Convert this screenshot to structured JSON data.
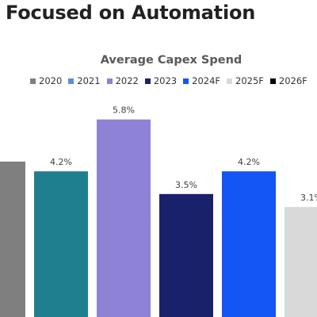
{
  "page": {
    "title": "Focused on Automation"
  },
  "chart_data": {
    "type": "bar",
    "title": "Average Capex Spend",
    "xlabel": "",
    "ylabel": "",
    "ylim": [
      0,
      6.6
    ],
    "grid": false,
    "legend_position": "top",
    "categories": [
      "2020",
      "2021",
      "2022",
      "2023",
      "2024F",
      "2025F",
      "2026F"
    ],
    "series": [
      {
        "values": [
          null,
          4.2,
          5.8,
          3.5,
          4.2,
          3.1,
          null
        ]
      }
    ],
    "value_labels": [
      "",
      "4.2%",
      "5.8%",
      "3.5%",
      "4.2%",
      "3.1%",
      ""
    ],
    "bar_colors": [
      "#7f7f7f",
      "#1f7f8f",
      "#8e82d6",
      "#19216b",
      "#1455f5",
      "#d9d9d9",
      "#000000"
    ],
    "legend": [
      {
        "label": "2020",
        "color": "#7f7f7f"
      },
      {
        "label": "2021",
        "color": "#5b8fd9"
      },
      {
        "label": "2022",
        "color": "#8e82d6"
      },
      {
        "label": "2023",
        "color": "#19216b"
      },
      {
        "label": "2024F",
        "color": "#1455f5"
      },
      {
        "label": "2025F",
        "color": "#d9d9d9"
      },
      {
        "label": "2026F",
        "color": "#000000"
      }
    ]
  }
}
